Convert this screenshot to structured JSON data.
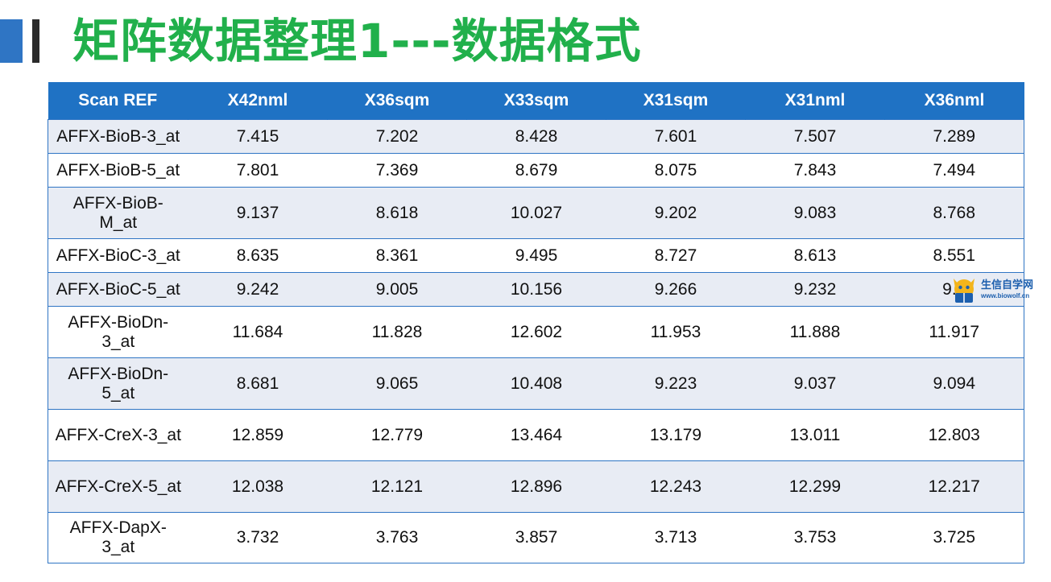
{
  "title": "矩阵数据整理1---数据格式",
  "table": {
    "headers": [
      "Scan REF",
      "X42nml",
      "X36sqm",
      "X33sqm",
      "X31sqm",
      "X31nml",
      "X36nml"
    ],
    "rows": [
      {
        "label": [
          "AFFX-BioB-3_at"
        ],
        "values": [
          "7.415",
          "7.202",
          "8.428",
          "7.601",
          "7.507",
          "7.289"
        ],
        "height": 42
      },
      {
        "label": [
          "AFFX-BioB-5_at"
        ],
        "values": [
          "7.801",
          "7.369",
          "8.679",
          "8.075",
          "7.843",
          "7.494"
        ],
        "height": 42
      },
      {
        "label": [
          "AFFX-BioB-",
          "M_at"
        ],
        "values": [
          "9.137",
          "8.618",
          "10.027",
          "9.202",
          "9.083",
          "8.768"
        ],
        "height": 64
      },
      {
        "label": [
          "AFFX-BioC-3_at"
        ],
        "values": [
          "8.635",
          "8.361",
          "9.495",
          "8.727",
          "8.613",
          "8.551"
        ],
        "height": 42
      },
      {
        "label": [
          "AFFX-BioC-5_at"
        ],
        "values": [
          "9.242",
          "9.005",
          "10.156",
          "9.266",
          "9.232",
          "9.1"
        ],
        "height": 42
      },
      {
        "label": [
          "AFFX-BioDn-",
          "3_at"
        ],
        "values": [
          "11.684",
          "11.828",
          "12.602",
          "11.953",
          "11.888",
          "11.917"
        ],
        "height": 64
      },
      {
        "label": [
          "AFFX-BioDn-",
          "5_at"
        ],
        "values": [
          "8.681",
          "9.065",
          "10.408",
          "9.223",
          "9.037",
          "9.094"
        ],
        "height": 64
      },
      {
        "label": [
          "AFFX-CreX-3_at"
        ],
        "values": [
          "12.859",
          "12.779",
          "13.464",
          "13.179",
          "13.011",
          "12.803"
        ],
        "height": 64
      },
      {
        "label": [
          "AFFX-CreX-5_at"
        ],
        "values": [
          "12.038",
          "12.121",
          "12.896",
          "12.243",
          "12.299",
          "12.217"
        ],
        "height": 64
      },
      {
        "label": [
          "AFFX-DapX-",
          "3_at"
        ],
        "values": [
          "3.732",
          "3.763",
          "3.857",
          "3.713",
          "3.753",
          "3.725"
        ],
        "height": 63
      }
    ]
  },
  "watermark": {
    "name": "生信自学网",
    "url": "www.biowolf.cn",
    "colors": {
      "primary": "#1c5fae",
      "accent": "#f3b51c"
    }
  },
  "colors": {
    "title_green": "#21b04b",
    "header_blue": "#1f72c4",
    "accent_blue": "#2f75c4",
    "row_alt": "#e8ecf4"
  }
}
